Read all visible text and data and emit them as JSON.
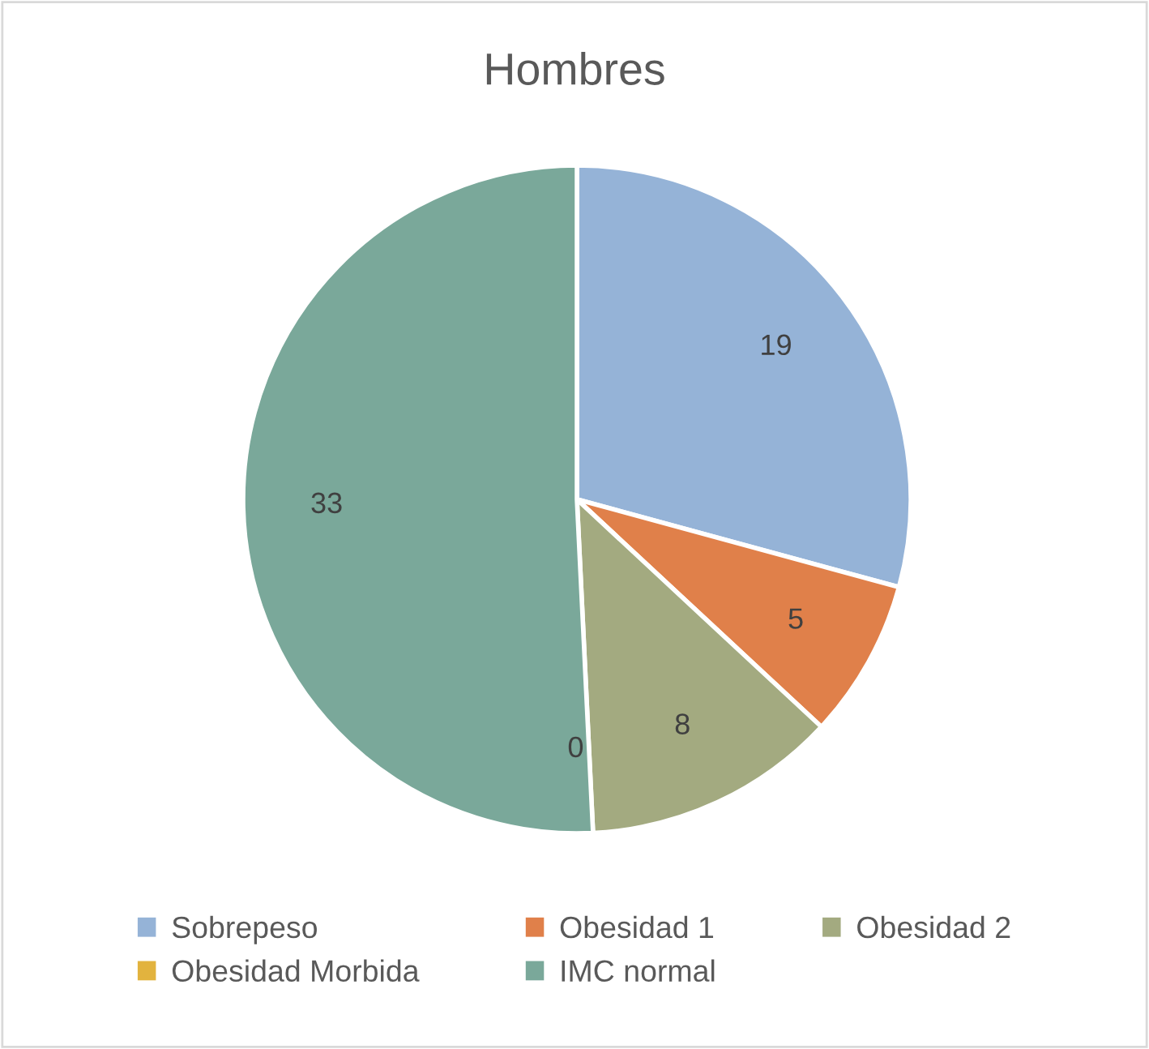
{
  "chart_data": {
    "type": "pie",
    "title": "Hombres",
    "categories": [
      "Sobrepeso",
      "Obesidad 1",
      "Obesidad 2",
      "Obesidad Morbida",
      "IMC normal"
    ],
    "values": [
      19,
      5,
      8,
      0,
      33
    ],
    "colors": [
      "#95b3d7",
      "#e0804a",
      "#a3aa80",
      "#e2b33e",
      "#7aa89a"
    ],
    "value_labels": [
      "19",
      "5",
      "8",
      "0",
      "33"
    ],
    "legend": "bottom"
  }
}
